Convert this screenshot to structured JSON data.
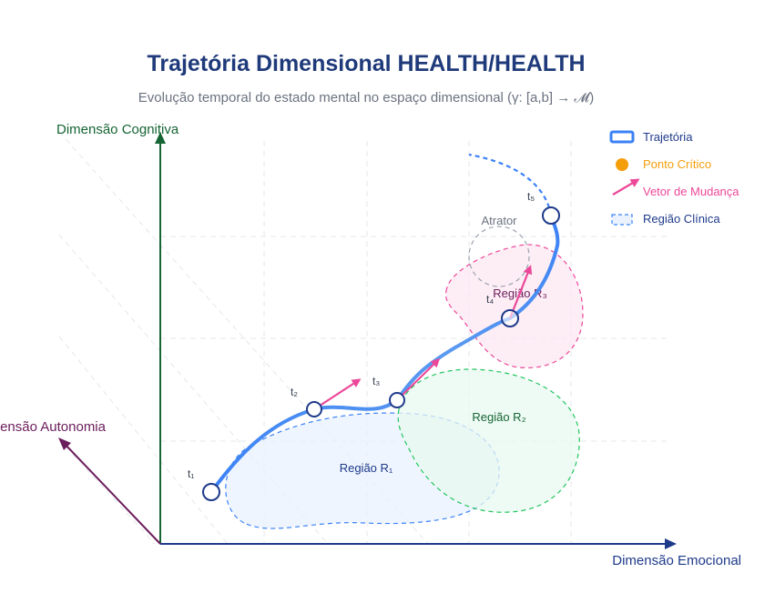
{
  "title": "Trajetória Dimensional HEALTH/HEALTH",
  "subtitle": "Evolução temporal do estado mental no espaço dimensional (γ: [a,b] → 𝓜)",
  "axes": {
    "y_label": "Dimensão Cognitiva",
    "x_label": "Dimensão Emocional",
    "z_label": "Dimensão Autonomia"
  },
  "regions": {
    "r1": "Região R₁",
    "r2": "Região R₂",
    "r3": "Região R₃",
    "attractor": "Atrator"
  },
  "time_points": {
    "t1": "t₁",
    "t2": "t₂",
    "t3": "t₃",
    "t4": "t₄",
    "t5": "t₅"
  },
  "legend": {
    "trajectory": "Trajetória",
    "critical_point": "Ponto Crítico",
    "change_vector": "Vetor de Mudança",
    "clinical_region": "Região Clínica"
  },
  "colors": {
    "trajectory": "#3b82f6",
    "critical": "#f59e0b",
    "vector": "#ec4899",
    "r1_fill": "#eaf2fd",
    "r2_fill": "#e8f8f0",
    "r3_fill": "#fde8f3",
    "y_axis": "#166534",
    "x_axis": "#1e3a8a",
    "z_axis": "#6b1d5c"
  }
}
